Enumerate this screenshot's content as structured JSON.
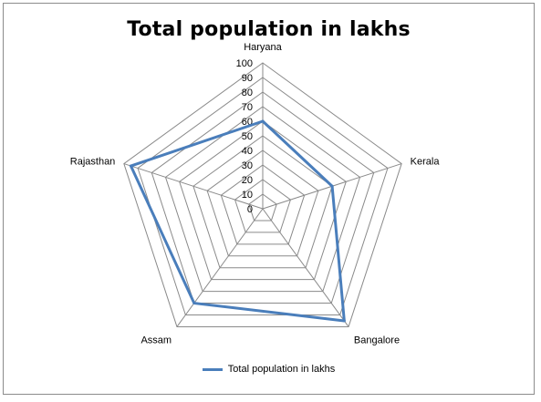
{
  "chart_data": {
    "type": "radar",
    "title": "Total population in lakhs",
    "categories": [
      "Haryana",
      "Kerala",
      "Bangalore",
      "Assam",
      "Rajasthan"
    ],
    "series": [
      {
        "name": "Total population  in lakhs",
        "values": [
          60,
          50,
          95,
          80,
          95
        ],
        "color": "#4a7ebb"
      }
    ],
    "rlim": [
      0,
      100
    ],
    "r_ticks": [
      0,
      10,
      20,
      30,
      40,
      50,
      60,
      70,
      80,
      90,
      100
    ],
    "grid": true,
    "legend_position": "bottom"
  }
}
